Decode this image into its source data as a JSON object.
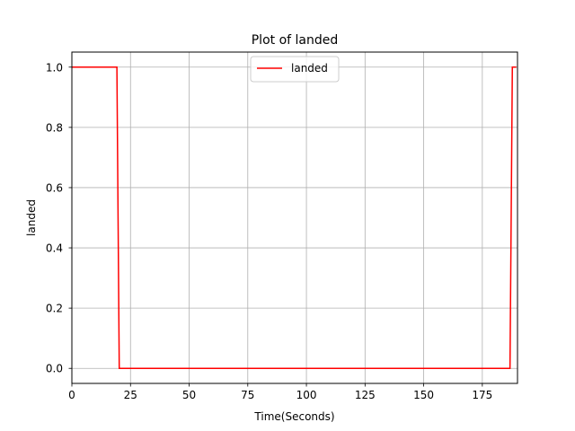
{
  "chart_data": {
    "type": "line",
    "title": "Plot of landed",
    "xlabel": "Time(Seconds)",
    "ylabel": "landed",
    "xlim": [
      0,
      190
    ],
    "ylim": [
      -0.05,
      1.05
    ],
    "xticks": [
      0,
      25,
      50,
      75,
      100,
      125,
      150,
      175
    ],
    "yticks": [
      0.0,
      0.2,
      0.4,
      0.6,
      0.8,
      1.0
    ],
    "xtick_labels": [
      "0",
      "25",
      "50",
      "75",
      "100",
      "125",
      "150",
      "175"
    ],
    "ytick_labels": [
      "0.0",
      "0.2",
      "0.4",
      "0.6",
      "0.8",
      "1.0"
    ],
    "grid": true,
    "legend_position": "top-center",
    "series": [
      {
        "name": "landed",
        "color": "#ff0000",
        "x": [
          0,
          19.2,
          20.2,
          186.8,
          187.8,
          189.5
        ],
        "y": [
          1,
          1,
          0,
          0,
          1,
          1
        ]
      }
    ]
  }
}
